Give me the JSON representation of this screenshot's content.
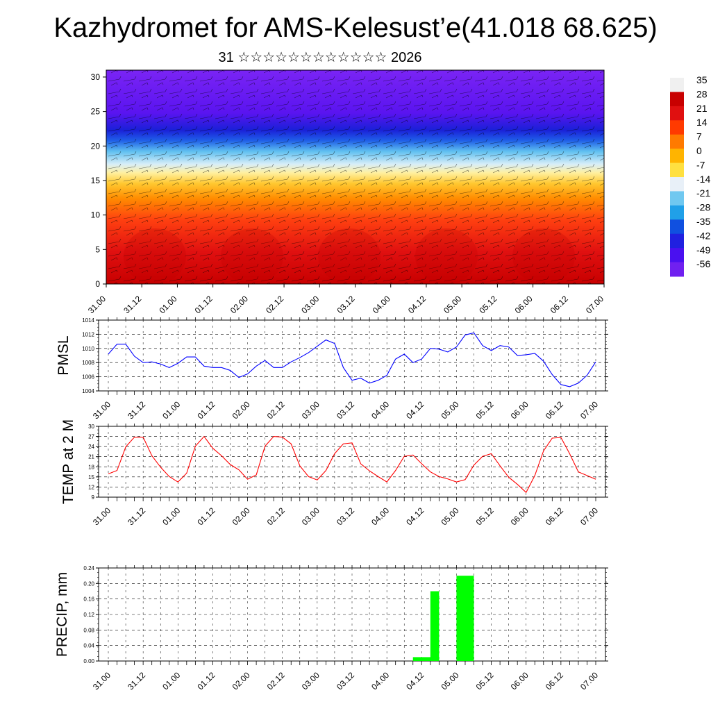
{
  "header": {
    "title": "Kazhydromet for AMS-Kelesust’e(41.018 68.625)",
    "subtitle": "31 ☆☆☆☆☆☆☆☆☆☆☆☆ 2026"
  },
  "chart_data": [
    {
      "id": "upper_air",
      "type": "heatmap",
      "title": "31 ☆☆☆☆☆☆☆☆☆☆☆☆ 2026",
      "ylabel": "",
      "ylim": [
        0,
        31
      ],
      "yticks": [
        0,
        5,
        10,
        15,
        20,
        25,
        30
      ],
      "time_labels": [
        "31.00",
        "31.12",
        "01.00",
        "01.12",
        "02.00",
        "02.12",
        "03.00",
        "03.12",
        "04.00",
        "04.12",
        "05.00",
        "05.12",
        "06.00",
        "06.12",
        "07.00"
      ],
      "description_values": "temperature field with wind barbs; warm near surface, cold aloft",
      "colorbar": {
        "labels": [
          "35",
          "28",
          "21",
          "14",
          "7",
          "0",
          "-7",
          "-14",
          "-21",
          "-28",
          "-35",
          "-42",
          "-49",
          "-56"
        ],
        "colors": [
          "#f0f0f0",
          "#c80000",
          "#e01010",
          "#ff3a00",
          "#ff7a00",
          "#ffb400",
          "#ffe040",
          "#e8f0f8",
          "#70c8f0",
          "#20a0e8",
          "#1050e0",
          "#2020e0",
          "#4a10f0",
          "#7020f0"
        ]
      }
    },
    {
      "id": "pmsl",
      "type": "line",
      "ylabel": "PMSL",
      "ylim": [
        1004,
        1014
      ],
      "yticks": [
        1004,
        1006,
        1008,
        1010,
        1012,
        1014
      ],
      "color": "#0000ff",
      "time_labels": [
        "31.00",
        "31.12",
        "01.00",
        "01.12",
        "02.00",
        "02.12",
        "03.00",
        "03.12",
        "04.00",
        "04.12",
        "05.00",
        "05.12",
        "06.00",
        "06.12",
        "07.00"
      ],
      "x": [
        0,
        1,
        2,
        3,
        4,
        5,
        6,
        7,
        8,
        9,
        10,
        11,
        12,
        13,
        14,
        15,
        16,
        17,
        18,
        19,
        20,
        21,
        22,
        23,
        24,
        25,
        26,
        27,
        28,
        29,
        30,
        31,
        32,
        33,
        34,
        35,
        36,
        37,
        38,
        39,
        40,
        41,
        42,
        43,
        44,
        45,
        46,
        47,
        48,
        49,
        50,
        51,
        52,
        53,
        54,
        55,
        56
      ],
      "values": [
        1009.2,
        1010.6,
        1010.6,
        1008.9,
        1008.0,
        1008.1,
        1007.8,
        1007.3,
        1007.9,
        1008.8,
        1008.8,
        1007.5,
        1007.3,
        1007.3,
        1006.9,
        1005.9,
        1006.4,
        1007.5,
        1008.3,
        1007.3,
        1007.3,
        1008.1,
        1008.7,
        1009.4,
        1010.3,
        1011.2,
        1010.7,
        1007.3,
        1005.5,
        1005.8,
        1005.1,
        1005.5,
        1006.2,
        1008.5,
        1009.2,
        1008.0,
        1008.5,
        1010.0,
        1009.9,
        1009.5,
        1010.2,
        1011.9,
        1012.2,
        1010.4,
        1009.7,
        1010.4,
        1010.2,
        1009.0,
        1009.1,
        1009.3,
        1008.2,
        1006.3,
        1004.9,
        1004.6,
        1005.1,
        1006.2,
        1008.1
      ]
    },
    {
      "id": "temp2m",
      "type": "line",
      "ylabel": "TEMP at 2 M",
      "ylim": [
        9,
        30
      ],
      "yticks": [
        9,
        12,
        15,
        18,
        21,
        24,
        27,
        30
      ],
      "color": "#ff0000",
      "time_labels": [
        "31.00",
        "31.12",
        "01.00",
        "01.12",
        "02.00",
        "02.12",
        "03.00",
        "03.12",
        "04.00",
        "04.12",
        "05.00",
        "05.12",
        "06.00",
        "06.12",
        "07.00"
      ],
      "x": [
        0,
        1,
        2,
        3,
        4,
        5,
        6,
        7,
        8,
        9,
        10,
        11,
        12,
        13,
        14,
        15,
        16,
        17,
        18,
        19,
        20,
        21,
        22,
        23,
        24,
        25,
        26,
        27,
        28,
        29,
        30,
        31,
        32,
        33,
        34,
        35,
        36,
        37,
        38,
        39,
        40,
        41,
        42,
        43,
        44,
        45,
        46,
        47,
        48,
        49,
        50,
        51,
        52,
        53,
        54,
        55,
        56
      ],
      "values": [
        15.9,
        16.9,
        23.9,
        26.8,
        26.8,
        21.3,
        17.9,
        15.1,
        13.5,
        16.1,
        24.1,
        27.0,
        23.5,
        21.3,
        18.7,
        17.1,
        14.3,
        15.6,
        24.1,
        27.0,
        26.8,
        24.8,
        18.3,
        15.1,
        14.1,
        16.9,
        21.9,
        24.8,
        25.1,
        18.9,
        16.8,
        15.1,
        13.5,
        16.9,
        21.1,
        21.5,
        18.9,
        16.5,
        15.1,
        14.4,
        13.5,
        14.2,
        18.5,
        21.1,
        21.9,
        18.3,
        14.9,
        12.8,
        10.4,
        15.4,
        22.7,
        26.5,
        26.7,
        21.9,
        16.5,
        15.4,
        14.3
      ]
    },
    {
      "id": "precip",
      "type": "bar",
      "ylabel": "PRECIP, mm",
      "ylim": [
        0,
        0.24
      ],
      "yticks": [
        "0.00",
        "0.04",
        "0.08",
        "0.12",
        "0.16",
        "0.20",
        "0.24"
      ],
      "color": "#00ff00",
      "time_labels": [
        "31.00",
        "31.12",
        "01.00",
        "01.12",
        "02.00",
        "02.12",
        "03.00",
        "03.12",
        "04.00",
        "04.12",
        "05.00",
        "05.12",
        "06.00",
        "06.12",
        "07.00"
      ],
      "bars": [
        {
          "x": 36.5,
          "width": 3.0,
          "value": 0.01
        },
        {
          "x": 37.5,
          "width": 1.0,
          "value": 0.18
        },
        {
          "x": 41.0,
          "width": 2.0,
          "value": 0.22
        }
      ]
    }
  ]
}
